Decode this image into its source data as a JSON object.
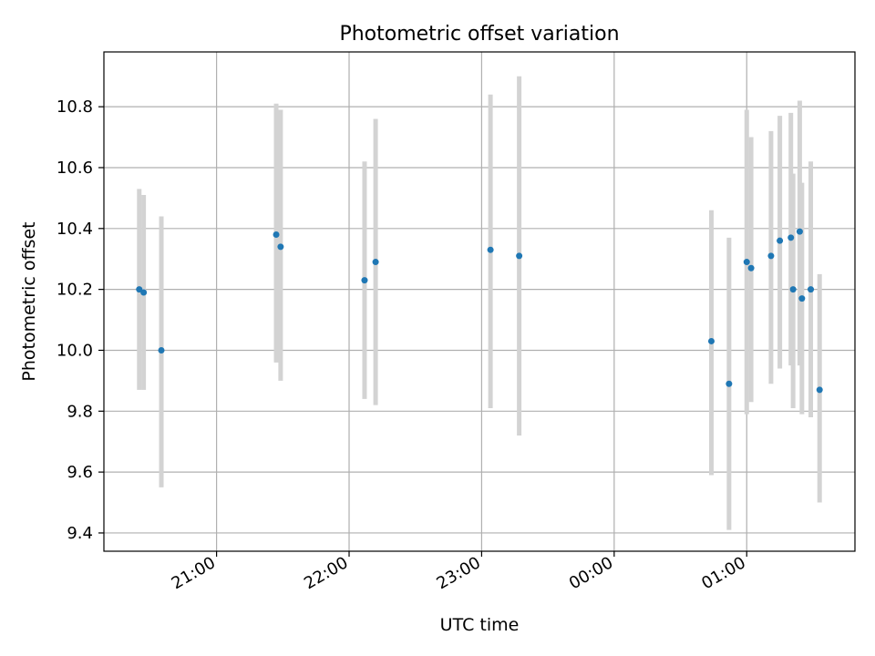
{
  "chart_data": {
    "type": "scatter",
    "title": "Photometric offset variation",
    "xlabel": "UTC time",
    "ylabel": "Photometric offset",
    "x_tick_labels": [
      "21:00",
      "22:00",
      "23:00",
      "00:00",
      "01:00"
    ],
    "x_ticks": [
      "2024-01-01T21:00",
      "2024-01-01T22:00",
      "2024-01-01T23:00",
      "2024-01-02T00:00",
      "2024-01-02T01:00"
    ],
    "xlim": [
      "2024-01-01T20:09",
      "2024-01-02T01:49"
    ],
    "y_ticks": [
      9.4,
      9.6,
      9.8,
      10.0,
      10.2,
      10.4,
      10.6,
      10.8
    ],
    "ylim": [
      9.34,
      10.98
    ],
    "grid": true,
    "series": [
      {
        "points": [
          {
            "x": "2024-01-01T20:25",
            "y": 10.2,
            "yerr_low": 9.87,
            "yerr_high": 10.53
          },
          {
            "x": "2024-01-01T20:27",
            "y": 10.19,
            "yerr_low": 9.87,
            "yerr_high": 10.51
          },
          {
            "x": "2024-01-01T20:35",
            "y": 10.0,
            "yerr_low": 9.55,
            "yerr_high": 10.44
          },
          {
            "x": "2024-01-01T21:27",
            "y": 10.38,
            "yerr_low": 9.96,
            "yerr_high": 10.81
          },
          {
            "x": "2024-01-01T21:29",
            "y": 10.34,
            "yerr_low": 9.9,
            "yerr_high": 10.79
          },
          {
            "x": "2024-01-01T22:07",
            "y": 10.23,
            "yerr_low": 9.84,
            "yerr_high": 10.62
          },
          {
            "x": "2024-01-01T22:12",
            "y": 10.29,
            "yerr_low": 9.82,
            "yerr_high": 10.76
          },
          {
            "x": "2024-01-01T23:04",
            "y": 10.33,
            "yerr_low": 9.81,
            "yerr_high": 10.84
          },
          {
            "x": "2024-01-01T23:17",
            "y": 10.31,
            "yerr_low": 9.72,
            "yerr_high": 10.9
          },
          {
            "x": "2024-01-02T00:44",
            "y": 10.03,
            "yerr_low": 9.59,
            "yerr_high": 10.46
          },
          {
            "x": "2024-01-02T00:52",
            "y": 9.89,
            "yerr_low": 9.41,
            "yerr_high": 10.37
          },
          {
            "x": "2024-01-02T01:00",
            "y": 10.29,
            "yerr_low": 9.79,
            "yerr_high": 10.79
          },
          {
            "x": "2024-01-02T01:02",
            "y": 10.27,
            "yerr_low": 9.83,
            "yerr_high": 10.7
          },
          {
            "x": "2024-01-02T01:11",
            "y": 10.31,
            "yerr_low": 9.89,
            "yerr_high": 10.72
          },
          {
            "x": "2024-01-02T01:15",
            "y": 10.36,
            "yerr_low": 9.94,
            "yerr_high": 10.77
          },
          {
            "x": "2024-01-02T01:20",
            "y": 10.37,
            "yerr_low": 9.95,
            "yerr_high": 10.78
          },
          {
            "x": "2024-01-02T01:21",
            "y": 10.2,
            "yerr_low": 9.81,
            "yerr_high": 10.58
          },
          {
            "x": "2024-01-02T01:24",
            "y": 10.39,
            "yerr_low": 9.95,
            "yerr_high": 10.82
          },
          {
            "x": "2024-01-02T01:25",
            "y": 10.17,
            "yerr_low": 9.79,
            "yerr_high": 10.55
          },
          {
            "x": "2024-01-02T01:29",
            "y": 10.2,
            "yerr_low": 9.78,
            "yerr_high": 10.62
          },
          {
            "x": "2024-01-02T01:33",
            "y": 9.87,
            "yerr_low": 9.5,
            "yerr_high": 10.25
          }
        ]
      }
    ],
    "colors": {
      "marker": "#1f77b4",
      "errorbar": "#d3d3d3",
      "grid": "#b0b0b0",
      "axes": "#000000"
    }
  }
}
